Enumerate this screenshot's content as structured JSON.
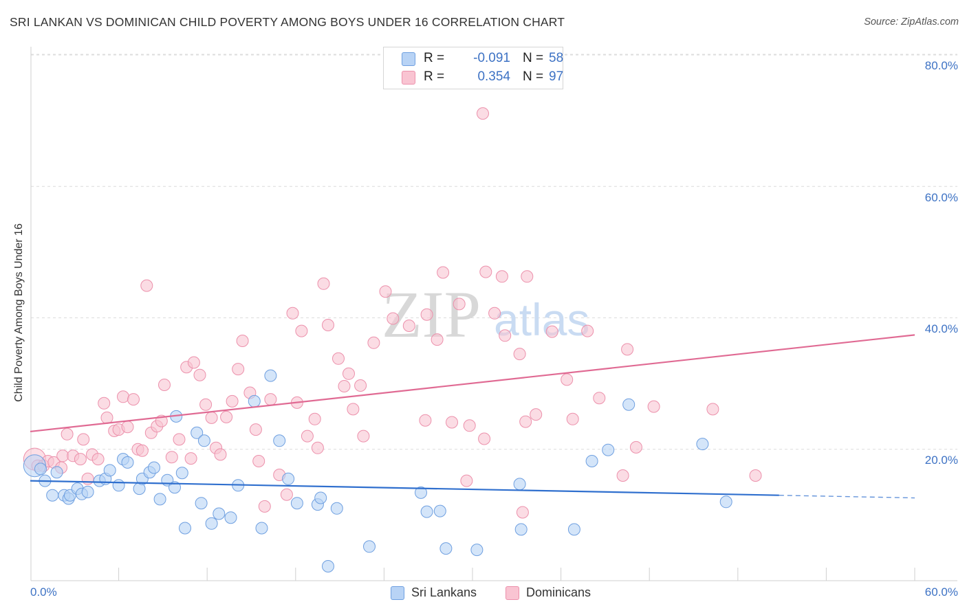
{
  "header": {
    "title": "SRI LANKAN VS DOMINICAN CHILD POVERTY AMONG BOYS UNDER 16 CORRELATION CHART",
    "source": "Source: ZipAtlas.com"
  },
  "watermark": {
    "zip": "ZIP",
    "atlas": "atlas"
  },
  "stats": [
    {
      "r_label": "R =",
      "r_value": "-0.091",
      "n_label": "N =",
      "n_value": "58"
    },
    {
      "r_label": "R =",
      "r_value": "0.354",
      "n_label": "N =",
      "n_value": "97"
    }
  ],
  "legend": [
    "Sri Lankans",
    "Dominicans"
  ],
  "colors": {
    "sri_lankans_fill": "#b8d3f5",
    "sri_lankans_stroke": "#6e9fe0",
    "sri_lankans_line": "#2f6fce",
    "dominicans_fill": "#f9c4d2",
    "dominicans_stroke": "#ec90ab",
    "dominicans_line": "#e06a93",
    "tick_text": "#3d72c4",
    "grid": "#dcdcdc"
  },
  "chart_data": {
    "type": "scatter",
    "title": "SRI LANKAN VS DOMINICAN CHILD POVERTY AMONG BOYS UNDER 16 CORRELATION CHART",
    "xlabel": "",
    "ylabel": "Child Poverty Among Boys Under 16",
    "xlim": [
      0,
      60
    ],
    "ylim": [
      0,
      80
    ],
    "y_ticks": [
      20,
      40,
      60,
      80
    ],
    "y_tick_labels": [
      "20.0%",
      "40.0%",
      "60.0%",
      "80.0%"
    ],
    "x_tick_labels": [
      "0.0%",
      "60.0%"
    ],
    "grid": "horizontal dashed",
    "legend_position": "bottom-center",
    "series": [
      {
        "name": "Sri Lankans",
        "r": -0.091,
        "n": 58,
        "trend": {
          "x0": 0,
          "y0": 15.2,
          "x1": 60,
          "y1": 12.6,
          "solid_until_x": 50.8
        },
        "points": [
          [
            0.3,
            17.5,
            "big"
          ],
          [
            0.7,
            17.0
          ],
          [
            1.0,
            15.2
          ],
          [
            1.8,
            16.5
          ],
          [
            1.5,
            13.0
          ],
          [
            2.3,
            13.0
          ],
          [
            2.6,
            12.5
          ],
          [
            2.7,
            13.0
          ],
          [
            3.2,
            14.0
          ],
          [
            3.5,
            13.2
          ],
          [
            3.9,
            13.5
          ],
          [
            4.7,
            15.2
          ],
          [
            5.1,
            15.5
          ],
          [
            5.4,
            16.8
          ],
          [
            6.0,
            14.5
          ],
          [
            6.3,
            18.5
          ],
          [
            6.6,
            18.0
          ],
          [
            7.4,
            14.0
          ],
          [
            7.6,
            15.5
          ],
          [
            8.1,
            16.5
          ],
          [
            8.4,
            17.2
          ],
          [
            8.8,
            12.4
          ],
          [
            9.3,
            15.3
          ],
          [
            9.8,
            14.2
          ],
          [
            9.9,
            25.0
          ],
          [
            10.3,
            16.4
          ],
          [
            10.5,
            8.0
          ],
          [
            11.3,
            22.5
          ],
          [
            11.6,
            11.8
          ],
          [
            11.8,
            21.3
          ],
          [
            12.3,
            8.7
          ],
          [
            12.8,
            10.2
          ],
          [
            13.6,
            9.6
          ],
          [
            14.1,
            14.5
          ],
          [
            15.2,
            27.3
          ],
          [
            15.7,
            8.0
          ],
          [
            16.3,
            31.2
          ],
          [
            16.9,
            21.3
          ],
          [
            17.5,
            15.5
          ],
          [
            18.1,
            11.8
          ],
          [
            19.5,
            11.6
          ],
          [
            19.7,
            12.6
          ],
          [
            20.2,
            2.2
          ],
          [
            20.8,
            11.0
          ],
          [
            23.0,
            5.2
          ],
          [
            26.5,
            13.4
          ],
          [
            26.9,
            10.5
          ],
          [
            27.8,
            10.6
          ],
          [
            28.2,
            4.9
          ],
          [
            30.3,
            4.7
          ],
          [
            33.2,
            14.7
          ],
          [
            33.3,
            7.8
          ],
          [
            36.9,
            7.8
          ],
          [
            38.1,
            18.2
          ],
          [
            39.2,
            19.9
          ],
          [
            40.6,
            26.8
          ],
          [
            45.6,
            20.8
          ],
          [
            47.2,
            12.0
          ]
        ]
      },
      {
        "name": "Dominicans",
        "r": 0.354,
        "n": 97,
        "trend": {
          "x0": 0,
          "y0": 22.7,
          "x1": 60,
          "y1": 37.4
        },
        "points": [
          [
            0.3,
            18.5,
            "big"
          ],
          [
            0.5,
            17.5
          ],
          [
            0.9,
            17.5
          ],
          [
            1.2,
            18.2
          ],
          [
            1.6,
            18.0
          ],
          [
            2.1,
            17.2
          ],
          [
            2.2,
            19.0
          ],
          [
            2.5,
            22.3
          ],
          [
            2.9,
            19.0
          ],
          [
            3.4,
            18.5
          ],
          [
            3.6,
            21.5
          ],
          [
            3.9,
            15.5
          ],
          [
            4.2,
            19.2
          ],
          [
            4.6,
            18.5
          ],
          [
            5.0,
            27.0
          ],
          [
            5.2,
            24.8
          ],
          [
            5.7,
            22.8
          ],
          [
            6.0,
            23.0
          ],
          [
            6.3,
            28.0
          ],
          [
            6.6,
            23.4
          ],
          [
            7.0,
            27.6
          ],
          [
            7.3,
            20.0
          ],
          [
            7.6,
            19.8
          ],
          [
            7.9,
            44.9
          ],
          [
            8.2,
            22.5
          ],
          [
            8.6,
            23.5
          ],
          [
            8.9,
            24.3
          ],
          [
            9.1,
            29.8
          ],
          [
            9.6,
            18.8
          ],
          [
            10.1,
            21.5
          ],
          [
            10.6,
            32.5
          ],
          [
            10.9,
            18.6
          ],
          [
            11.1,
            33.2
          ],
          [
            11.5,
            31.3
          ],
          [
            11.9,
            26.8
          ],
          [
            12.3,
            24.8
          ],
          [
            12.6,
            20.2
          ],
          [
            12.9,
            19.2
          ],
          [
            13.3,
            24.9
          ],
          [
            13.7,
            27.3
          ],
          [
            14.1,
            32.2
          ],
          [
            14.4,
            36.5
          ],
          [
            14.9,
            28.6
          ],
          [
            15.3,
            23.0
          ],
          [
            15.5,
            18.2
          ],
          [
            15.9,
            11.3
          ],
          [
            16.3,
            27.6
          ],
          [
            16.9,
            16.1
          ],
          [
            17.4,
            13.1
          ],
          [
            17.8,
            40.7
          ],
          [
            18.1,
            27.1
          ],
          [
            18.4,
            38.0
          ],
          [
            18.8,
            22.0
          ],
          [
            19.3,
            24.6
          ],
          [
            19.5,
            20.2
          ],
          [
            19.9,
            45.2
          ],
          [
            20.2,
            38.9
          ],
          [
            20.9,
            33.8
          ],
          [
            21.3,
            29.6
          ],
          [
            21.6,
            31.5
          ],
          [
            21.9,
            26.1
          ],
          [
            22.4,
            29.7
          ],
          [
            22.6,
            22.0
          ],
          [
            23.3,
            36.2
          ],
          [
            24.1,
            44.0
          ],
          [
            24.6,
            39.9
          ],
          [
            25.7,
            38.8
          ],
          [
            26.8,
            24.4
          ],
          [
            26.9,
            40.5
          ],
          [
            27.6,
            36.7
          ],
          [
            28.0,
            46.9
          ],
          [
            28.6,
            24.1
          ],
          [
            29.1,
            42.1
          ],
          [
            29.6,
            15.2
          ],
          [
            29.8,
            23.6
          ],
          [
            30.7,
            71.1
          ],
          [
            30.8,
            21.6
          ],
          [
            30.9,
            47.0
          ],
          [
            31.5,
            40.7
          ],
          [
            32.0,
            46.3
          ],
          [
            32.2,
            37.3
          ],
          [
            33.2,
            34.5
          ],
          [
            33.4,
            10.4
          ],
          [
            33.6,
            24.2
          ],
          [
            33.7,
            46.3
          ],
          [
            34.3,
            25.3
          ],
          [
            35.4,
            37.9
          ],
          [
            36.4,
            30.6
          ],
          [
            36.8,
            24.6
          ],
          [
            37.8,
            38.0
          ],
          [
            38.6,
            27.8
          ],
          [
            40.2,
            16.0
          ],
          [
            40.5,
            35.2
          ],
          [
            41.1,
            20.3
          ],
          [
            42.3,
            26.5
          ],
          [
            46.3,
            26.1
          ],
          [
            49.2,
            16.0
          ]
        ]
      }
    ]
  }
}
